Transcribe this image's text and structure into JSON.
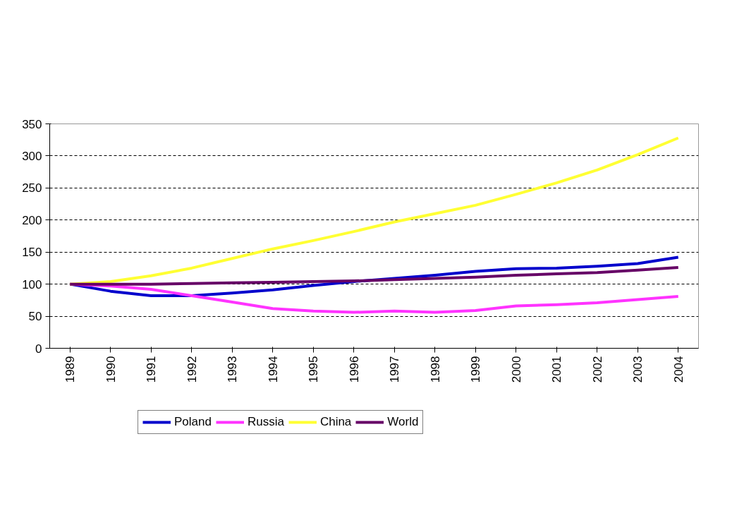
{
  "chart_data": {
    "type": "line",
    "categories": [
      "1989",
      "1990",
      "1991",
      "1992",
      "1993",
      "1994",
      "1995",
      "1996",
      "1997",
      "1998",
      "1999",
      "2000",
      "2001",
      "2002",
      "2003",
      "2004"
    ],
    "series": [
      {
        "name": "Poland",
        "color": "#0000cc",
        "values": [
          100,
          89,
          82,
          82,
          86,
          91,
          98,
          104,
          109,
          114,
          120,
          124,
          125,
          128,
          132,
          142
        ]
      },
      {
        "name": "Russia",
        "color": "#ff33ff",
        "values": [
          100,
          97,
          92,
          82,
          72,
          62,
          58,
          56,
          58,
          56,
          59,
          66,
          68,
          71,
          76,
          81
        ]
      },
      {
        "name": "China",
        "color": "#ffff33",
        "values": [
          100,
          104,
          113,
          125,
          140,
          155,
          168,
          182,
          197,
          210,
          223,
          240,
          258,
          278,
          302,
          328
        ]
      },
      {
        "name": "World",
        "color": "#660066",
        "values": [
          100,
          100,
          100,
          101,
          102,
          103,
          104,
          105,
          107,
          109,
          111,
          114,
          116,
          118,
          122,
          126
        ]
      }
    ],
    "ylim": [
      0,
      350
    ],
    "yticks": [
      0,
      50,
      100,
      150,
      200,
      250,
      300,
      350
    ],
    "grid": "y",
    "legend": "bottom",
    "line_style": "solid"
  }
}
